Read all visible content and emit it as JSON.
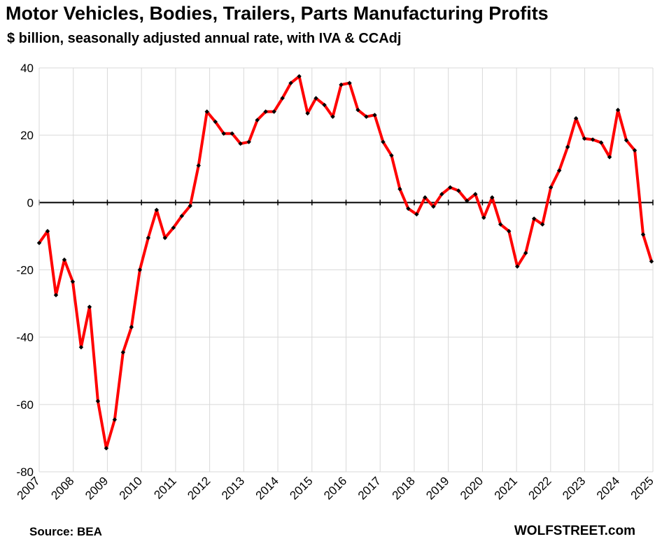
{
  "chart_data": {
    "type": "line",
    "title": "Motor Vehicles, Bodies, Trailers, Parts Manufacturing Profits",
    "subtitle": "$ billion, seasonally adjusted annual rate, with IVA & CCAdj",
    "source": "Source: BEA",
    "brand": "WOLFSTREET.com",
    "ylim": [
      -80,
      40
    ],
    "yticks": [
      "40",
      "20",
      "0",
      "-20",
      "-40",
      "-60",
      "-80"
    ],
    "ytick_values": [
      40,
      20,
      0,
      -20,
      -40,
      -60,
      -80
    ],
    "xticks": [
      "2007",
      "2008",
      "2009",
      "2010",
      "2011",
      "2012",
      "2013",
      "2014",
      "2015",
      "2016",
      "2017",
      "2018",
      "2019",
      "2020",
      "2021",
      "2022",
      "2023",
      "2024",
      "2025"
    ],
    "grid": true,
    "series_color": "#ff0000",
    "marker_color": "#000000",
    "series": [
      {
        "values": [
          -12,
          -8.5,
          -27.5,
          -17,
          -23.5,
          -43,
          -31,
          -59,
          -73,
          -64.5,
          -44.5,
          -37,
          -20,
          -10.5,
          -2.2,
          -10.5,
          -7.5,
          -4,
          -1,
          11,
          27,
          24,
          20.5,
          20.5,
          17.5,
          18,
          24.5,
          27,
          27,
          31,
          35.5,
          37.5,
          26.5,
          31,
          29,
          25.5,
          35,
          35.5,
          27.5,
          25.5,
          26,
          18,
          14,
          4,
          -1.8,
          -3.5,
          1.5,
          -1.2,
          2.5,
          4.5,
          3.5,
          0.5,
          2.5,
          -4.5,
          1.5,
          -6.5,
          -8.5,
          -19,
          -15,
          -4.8,
          -6.5,
          4.5,
          9.5,
          16.5,
          25,
          19,
          18.7,
          17.8,
          13.5,
          27.5,
          18.5,
          15.5,
          -9.5,
          -17.5
        ]
      }
    ]
  }
}
